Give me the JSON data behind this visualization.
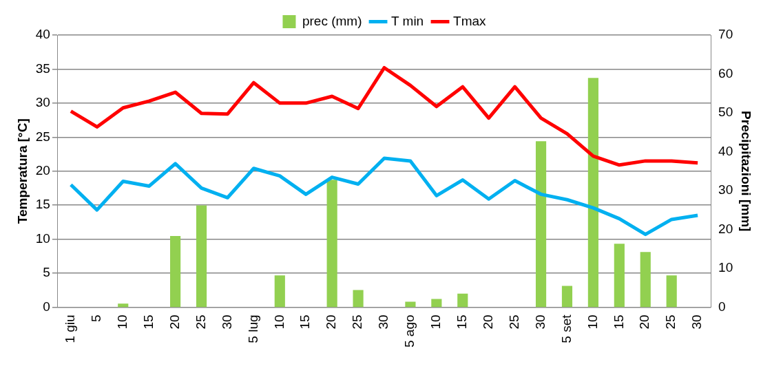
{
  "chart_data": {
    "type": "bar",
    "categories": [
      "1 giu",
      "5",
      "10",
      "15",
      "20",
      "25",
      "30",
      "5 lug",
      "10",
      "15",
      "20",
      "25",
      "30",
      "5 ago",
      "10",
      "15",
      "20",
      "25",
      "30",
      "5 set",
      "10",
      "15",
      "20",
      "25",
      "30"
    ],
    "ylabel": "Temperatura [°C]",
    "y2label": "Precipitazioni [mm]",
    "ylim": [
      0,
      40
    ],
    "yticks": [
      0,
      5,
      10,
      15,
      20,
      25,
      30,
      35,
      40
    ],
    "y2lim": [
      0,
      70
    ],
    "y2ticks": [
      0,
      10,
      20,
      30,
      40,
      50,
      60,
      70
    ],
    "grid": "y",
    "legend": "top",
    "marker": "none",
    "series": [
      {
        "name": "prec (mm)",
        "axis": "y2",
        "color": "#92d050",
        "values": [
          0,
          0,
          0.9,
          0,
          18.3,
          26.2,
          0,
          0,
          8.2,
          0,
          32.8,
          4.4,
          0,
          1.4,
          2.1,
          3.5,
          0,
          0,
          42.7,
          5.5,
          59.0,
          16.3,
          14.2,
          8.2,
          0
        ]
      },
      {
        "name": "T min",
        "type": "line",
        "color": "#00b0f0",
        "values": [
          18.0,
          14.3,
          18.5,
          17.8,
          21.1,
          17.5,
          16.1,
          20.4,
          19.3,
          16.6,
          19.1,
          18.1,
          21.9,
          21.5,
          16.4,
          18.7,
          15.9,
          18.6,
          16.6,
          15.8,
          14.6,
          13.0,
          10.7,
          12.9,
          13.5
        ]
      },
      {
        "name": "Tmax",
        "type": "line",
        "color": "#ff0000",
        "values": [
          28.8,
          26.5,
          29.3,
          30.3,
          31.6,
          28.5,
          28.4,
          33.0,
          30.0,
          30.0,
          31.0,
          29.2,
          35.2,
          32.6,
          29.5,
          32.4,
          27.8,
          32.4,
          27.8,
          25.5,
          22.2,
          20.9,
          21.5,
          21.5,
          21.2
        ]
      }
    ]
  }
}
